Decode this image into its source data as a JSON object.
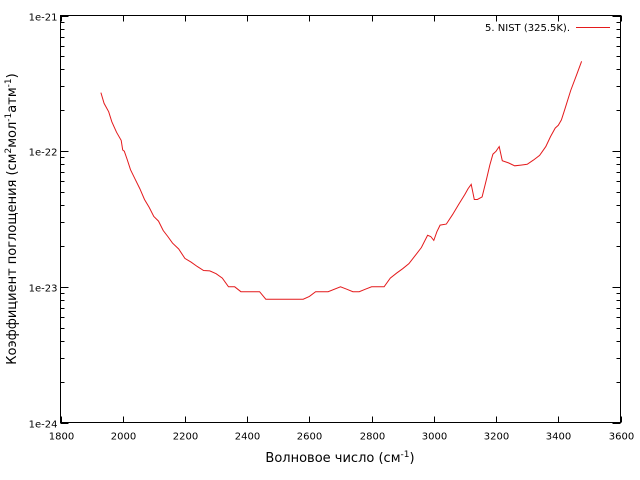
{
  "chart_data": {
    "type": "line",
    "xlabel_main": "Волновое число (см",
    "xlabel_sup": "-1",
    "xlabel_end": ")",
    "ylabel_parts": [
      "Коэффициент поглощения (см",
      "2",
      "мол",
      "-1",
      "атм",
      "-1",
      ")"
    ],
    "xlim": [
      1800,
      3600
    ],
    "ylim": [
      1e-24,
      1e-21
    ],
    "yscale": "log",
    "grid": false,
    "legend_position": "top-right",
    "x_ticks": [
      1800,
      2000,
      2200,
      2400,
      2600,
      2800,
      3000,
      3200,
      3400,
      3600
    ],
    "x_tick_labels": [
      "1800",
      "2000",
      "2200",
      "2400",
      "2600",
      "2800",
      "3000",
      "3200",
      "3400",
      "3600"
    ],
    "y_ticks": [
      1e-21,
      1e-22,
      1e-23,
      1e-24
    ],
    "y_tick_labels": [
      "1e-21",
      "1e-22",
      "1e-23",
      "1e-24"
    ],
    "series": [
      {
        "name": "5. NIST (325.5K).",
        "color": "#e41a1c",
        "x": [
          1930,
          1940,
          1955,
          1965,
          1980,
          1995,
          2000,
          2005,
          2015,
          2025,
          2040,
          2055,
          2070,
          2085,
          2100,
          2115,
          2130,
          2145,
          2160,
          2180,
          2200,
          2220,
          2240,
          2260,
          2280,
          2300,
          2320,
          2340,
          2360,
          2380,
          2400,
          2420,
          2440,
          2460,
          2500,
          2540,
          2580,
          2600,
          2620,
          2660,
          2700,
          2720,
          2740,
          2760,
          2780,
          2800,
          2820,
          2840,
          2860,
          2880,
          2900,
          2920,
          2940,
          2960,
          2980,
          2990,
          3000,
          3010,
          3020,
          3040,
          3060,
          3080,
          3100,
          3110,
          3120,
          3130,
          3140,
          3155,
          3170,
          3180,
          3190,
          3200,
          3205,
          3210,
          3220,
          3240,
          3260,
          3280,
          3300,
          3320,
          3340,
          3360,
          3375,
          3390,
          3400,
          3410,
          3420,
          3440,
          3460,
          3475
        ],
        "y": [
          2.7e-22,
          2.25e-22,
          1.95e-22,
          1.65e-22,
          1.38e-22,
          1.2e-22,
          1.02e-22,
          1e-22,
          8.6e-23,
          7.3e-23,
          6.2e-23,
          5.3e-23,
          4.4e-23,
          3.85e-23,
          3.3e-23,
          3.05e-23,
          2.6e-23,
          2.35e-23,
          2.1e-23,
          1.9e-23,
          1.62e-23,
          1.52e-23,
          1.41e-23,
          1.32e-23,
          1.31e-23,
          1.25e-23,
          1.16e-23,
          1e-23,
          1e-23,
          9.2e-24,
          9.2e-24,
          9.2e-24,
          9.2e-24,
          8.1e-24,
          8.1e-24,
          8.1e-24,
          8.1e-24,
          8.5e-24,
          9.2e-24,
          9.2e-24,
          1e-23,
          9.6e-24,
          9.2e-24,
          9.2e-24,
          9.6e-24,
          1e-23,
          1e-23,
          1e-23,
          1.16e-23,
          1.26e-23,
          1.36e-23,
          1.48e-23,
          1.7e-23,
          1.95e-23,
          2.4e-23,
          2.35e-23,
          2.2e-23,
          2.55e-23,
          2.85e-23,
          2.9e-23,
          3.4e-23,
          4.05e-23,
          4.8e-23,
          5.3e-23,
          5.7e-23,
          4.4e-23,
          4.4e-23,
          4.6e-23,
          6.3e-23,
          7.9e-23,
          9.5e-23,
          1e-22,
          1.04e-22,
          1.08e-22,
          8.5e-23,
          8.2e-23,
          7.8e-23,
          7.9e-23,
          8e-23,
          8.6e-23,
          9.3e-23,
          1.08e-22,
          1.28e-22,
          1.48e-22,
          1.55e-22,
          1.7e-22,
          2e-22,
          2.8e-22,
          3.7e-22,
          4.6e-22
        ]
      }
    ]
  }
}
